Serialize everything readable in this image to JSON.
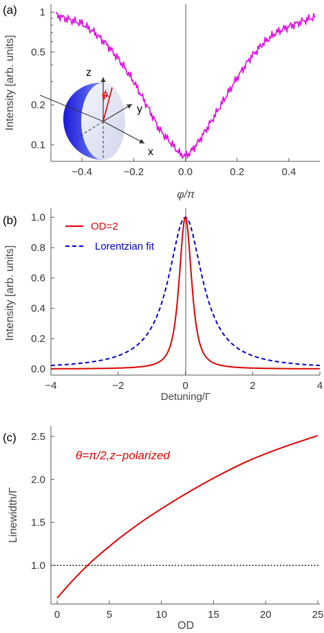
{
  "chart_data": [
    {
      "panel": "(a)",
      "type": "line",
      "xlabel": "φ/π",
      "ylabel": "Intensity [arb. units]",
      "xlim": [
        -0.52,
        0.52
      ],
      "ylim": [
        0.075,
        1.15
      ],
      "yscale": "log",
      "xticks": [
        "−0.4",
        "−0.2",
        "0.0",
        "0.2",
        "0.4"
      ],
      "xtick_values": [
        -0.4,
        -0.2,
        0.0,
        0.2,
        0.4
      ],
      "yticks": [
        "0.1",
        "0.2",
        "0.5",
        "1"
      ],
      "ytick_values": [
        0.1,
        0.2,
        0.5,
        1.0
      ],
      "vertical_line_x": 0.0,
      "color": "#e010e0",
      "x": [
        -0.5,
        -0.45,
        -0.4,
        -0.35,
        -0.3,
        -0.25,
        -0.2,
        -0.15,
        -0.1,
        -0.05,
        -0.02,
        0.0,
        0.02,
        0.05,
        0.1,
        0.15,
        0.2,
        0.25,
        0.3,
        0.35,
        0.4,
        0.45,
        0.5
      ],
      "y": [
        0.95,
        0.88,
        0.82,
        0.7,
        0.56,
        0.42,
        0.3,
        0.2,
        0.13,
        0.1,
        0.085,
        0.082,
        0.088,
        0.105,
        0.15,
        0.22,
        0.32,
        0.45,
        0.58,
        0.7,
        0.78,
        0.85,
        0.92
      ],
      "inset": {
        "axes": [
          "z",
          "y",
          "x"
        ],
        "angle_label": "ϕ"
      }
    },
    {
      "panel": "(b)",
      "type": "line",
      "xlabel": "Detuning/Γ",
      "ylabel": "Intensity [arb. units]",
      "xlim": [
        -4,
        4
      ],
      "ylim": [
        -0.04,
        1.06
      ],
      "xticks": [
        "−4",
        "−2",
        "0",
        "2",
        "4"
      ],
      "xtick_values": [
        -4,
        -2,
        0,
        2,
        4
      ],
      "yticks": [
        "0.0",
        "0.2",
        "0.4",
        "0.6",
        "0.8",
        "1.0"
      ],
      "ytick_values": [
        0.0,
        0.2,
        0.4,
        0.6,
        0.8,
        1.0
      ],
      "vertical_line_x": 0,
      "series": [
        {
          "name": "OD=2",
          "style": "solid",
          "color": "#e00000",
          "hwhm": 0.43
        },
        {
          "name": "Lorentzian fit",
          "style": "dashed",
          "color": "#0000cc",
          "hwhm": 0.62
        }
      ]
    },
    {
      "panel": "(c)",
      "type": "line",
      "title": "θ=π/2,z−polarized",
      "xlabel": "OD",
      "ylabel": "Linewidth/Γ",
      "xlim": [
        -0.6,
        25.2
      ],
      "ylim": [
        0.55,
        2.62
      ],
      "xticks": [
        "0",
        "5",
        "10",
        "15",
        "20",
        "25"
      ],
      "xtick_values": [
        0,
        5,
        10,
        15,
        20,
        25
      ],
      "yticks": [
        "1.0",
        "1.5",
        "2.0",
        "2.5"
      ],
      "ytick_values": [
        1.0,
        1.5,
        2.0,
        2.5
      ],
      "reference_line_y": 1.0,
      "series": [
        {
          "style": "solid",
          "color": "#e00000",
          "x": [
            0,
            1,
            2,
            3,
            4,
            5,
            6,
            8,
            10,
            12,
            14,
            16,
            18,
            20,
            22,
            24,
            25
          ],
          "y": [
            0.62,
            0.76,
            0.89,
            1.01,
            1.12,
            1.22,
            1.32,
            1.5,
            1.66,
            1.81,
            1.95,
            2.08,
            2.2,
            2.3,
            2.39,
            2.47,
            2.51
          ]
        }
      ]
    }
  ]
}
